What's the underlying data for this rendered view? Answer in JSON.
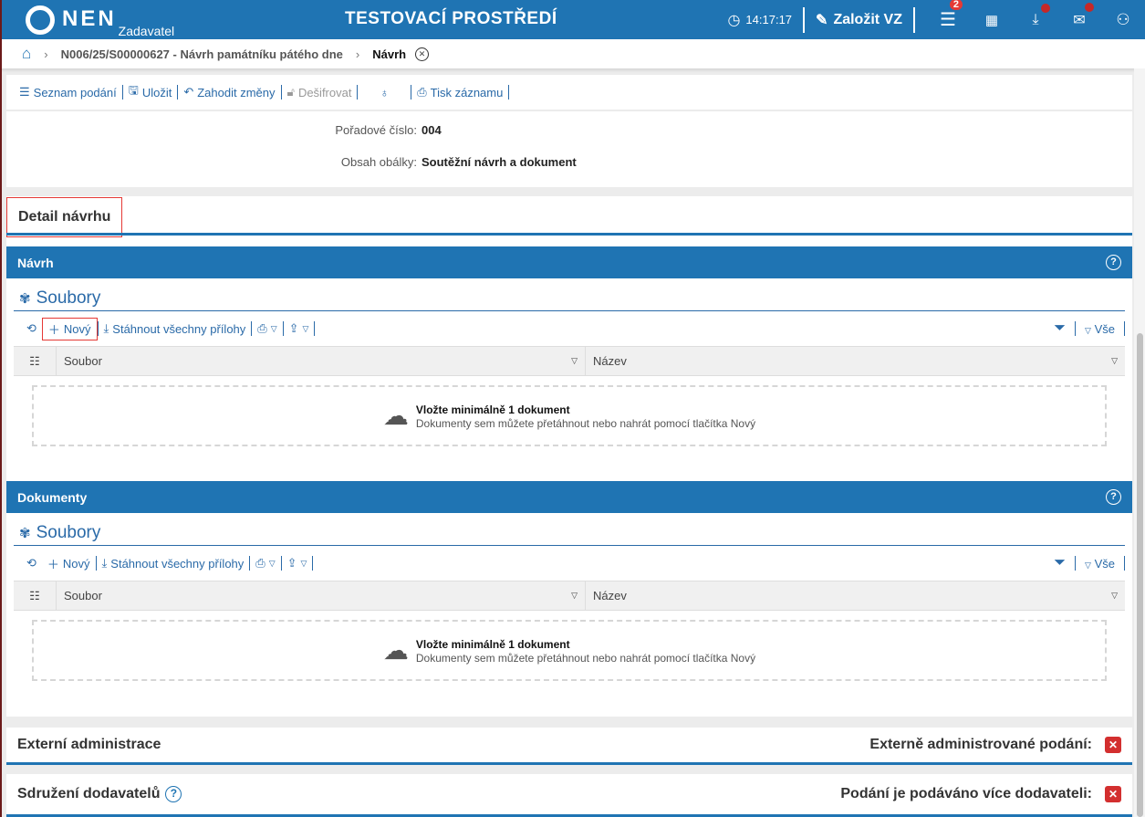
{
  "header": {
    "logo": "NEN",
    "logo_sub": "Zadavatel",
    "env_title": "TESTOVACÍ PROSTŘEDÍ",
    "time": "14:17:17",
    "create_label": "Založit VZ",
    "menu_badge": "2",
    "accent": "#1f74b3"
  },
  "breadcrumb": {
    "item1": "N006/25/S00000627 - Návrh památníku pátého dne",
    "current": "Návrh"
  },
  "toolbar": {
    "list": "Seznam podání",
    "save": "Uložit",
    "discard": "Zahodit změny",
    "decrypt": "Dešifrovat",
    "print": "Tisk záznamu"
  },
  "info": {
    "order_label": "Pořadové číslo:",
    "order_value": "004",
    "content_label": "Obsah obálky:",
    "content_value": "Soutěžní návrh a dokument"
  },
  "detail": {
    "title": "Detail návrhu",
    "sections": [
      {
        "title": "Návrh",
        "files_title": "Soubory",
        "new": "Nový",
        "download_all": "Stáhnout všechny přílohy",
        "all": "Vše",
        "col1": "Soubor",
        "col2": "Název",
        "drop_title": "Vložte minimálně 1 dokument",
        "drop_sub": "Dokumenty sem můžete přetáhnout nebo nahrát pomocí tlačítka Nový"
      },
      {
        "title": "Dokumenty",
        "files_title": "Soubory",
        "new": "Nový",
        "download_all": "Stáhnout všechny přílohy",
        "all": "Vše",
        "col1": "Soubor",
        "col2": "Název",
        "drop_title": "Vložte minimálně 1 dokument",
        "drop_sub": "Dokumenty sem můžete přetáhnout nebo nahrát pomocí tlačítka Nový"
      }
    ]
  },
  "external": {
    "title": "Externí administrace",
    "label": "Externě administrované podání:",
    "value": "✕"
  },
  "association": {
    "title": "Sdružení dodavatelů",
    "label": "Podání je podáváno více dodavateli:",
    "value": "✕"
  }
}
